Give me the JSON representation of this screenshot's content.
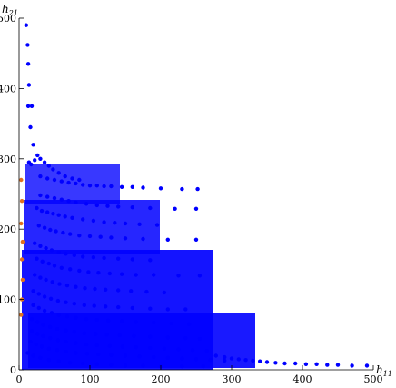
{
  "chart_data": {
    "type": "scatter",
    "title": "",
    "xlabel": "h11",
    "ylabel": "h21",
    "xlim": [
      0,
      500
    ],
    "ylim": [
      0,
      500
    ],
    "xticks": [
      0,
      100,
      200,
      300,
      400,
      500
    ],
    "yticks": [
      0,
      100,
      200,
      300,
      400,
      500
    ],
    "grid": false,
    "legend": "none",
    "colors": {
      "main": "#0000ff",
      "highlight": "#e07020"
    },
    "series": [
      {
        "color": "#0000ff",
        "points": [
          [
            10,
            490
          ],
          [
            12,
            462
          ],
          [
            13,
            435
          ],
          [
            14,
            405
          ],
          [
            13,
            375
          ],
          [
            18,
            375
          ],
          [
            16,
            345
          ],
          [
            20,
            320
          ],
          [
            14,
            295
          ],
          [
            17,
            292
          ],
          [
            22,
            298
          ],
          [
            26,
            305
          ],
          [
            30,
            300
          ],
          [
            36,
            295
          ],
          [
            42,
            290
          ],
          [
            48,
            285
          ],
          [
            56,
            280
          ],
          [
            65,
            275
          ],
          [
            75,
            272
          ],
          [
            85,
            270
          ],
          [
            30,
            275
          ],
          [
            40,
            272
          ],
          [
            50,
            270
          ],
          [
            60,
            268
          ],
          [
            70,
            266
          ],
          [
            80,
            265
          ],
          [
            90,
            263
          ],
          [
            100,
            262
          ],
          [
            110,
            262
          ],
          [
            120,
            261
          ],
          [
            130,
            261
          ],
          [
            145,
            260
          ],
          [
            160,
            260
          ],
          [
            175,
            259
          ],
          [
            200,
            258
          ],
          [
            230,
            257
          ],
          [
            252,
            257
          ],
          [
            30,
            248
          ],
          [
            40,
            246
          ],
          [
            50,
            244
          ],
          [
            60,
            242
          ],
          [
            70,
            240
          ],
          [
            80,
            238
          ],
          [
            95,
            236
          ],
          [
            110,
            234
          ],
          [
            125,
            233
          ],
          [
            140,
            232
          ],
          [
            160,
            231
          ],
          [
            185,
            230
          ],
          [
            220,
            229
          ],
          [
            250,
            229
          ],
          [
            25,
            230
          ],
          [
            32,
            226
          ],
          [
            40,
            224
          ],
          [
            48,
            222
          ],
          [
            56,
            220
          ],
          [
            65,
            218
          ],
          [
            75,
            216
          ],
          [
            90,
            214
          ],
          [
            105,
            212
          ],
          [
            120,
            210
          ],
          [
            135,
            209
          ],
          [
            150,
            208
          ],
          [
            170,
            207
          ],
          [
            195,
            206
          ],
          [
            28,
            205
          ],
          [
            36,
            202
          ],
          [
            44,
            199
          ],
          [
            52,
            197
          ],
          [
            62,
            195
          ],
          [
            72,
            193
          ],
          [
            85,
            191
          ],
          [
            100,
            190
          ],
          [
            115,
            189
          ],
          [
            130,
            188
          ],
          [
            150,
            187
          ],
          [
            175,
            186
          ],
          [
            210,
            185
          ],
          [
            250,
            185
          ],
          [
            22,
            180
          ],
          [
            30,
            176
          ],
          [
            38,
            173
          ],
          [
            46,
            170
          ],
          [
            56,
            167
          ],
          [
            66,
            165
          ],
          [
            78,
            163
          ],
          [
            90,
            161
          ],
          [
            105,
            160
          ],
          [
            120,
            159
          ],
          [
            140,
            158
          ],
          [
            160,
            157
          ],
          [
            185,
            156
          ],
          [
            25,
            158
          ],
          [
            33,
            154
          ],
          [
            42,
            151
          ],
          [
            50,
            148
          ],
          [
            60,
            145
          ],
          [
            72,
            143
          ],
          [
            85,
            141
          ],
          [
            98,
            139
          ],
          [
            112,
            138
          ],
          [
            128,
            137
          ],
          [
            145,
            136
          ],
          [
            165,
            135
          ],
          [
            190,
            135
          ],
          [
            225,
            134
          ],
          [
            255,
            134
          ],
          [
            22,
            135
          ],
          [
            30,
            131
          ],
          [
            38,
            128
          ],
          [
            47,
            125
          ],
          [
            57,
            122
          ],
          [
            68,
            120
          ],
          [
            80,
            118
          ],
          [
            93,
            116
          ],
          [
            107,
            115
          ],
          [
            122,
            114
          ],
          [
            140,
            113
          ],
          [
            158,
            112
          ],
          [
            180,
            111
          ],
          [
            205,
            110
          ],
          [
            20,
            112
          ],
          [
            28,
            108
          ],
          [
            36,
            104
          ],
          [
            45,
            101
          ],
          [
            55,
            98
          ],
          [
            66,
            96
          ],
          [
            78,
            94
          ],
          [
            92,
            92
          ],
          [
            106,
            91
          ],
          [
            122,
            90
          ],
          [
            140,
            89
          ],
          [
            160,
            88
          ],
          [
            185,
            87
          ],
          [
            210,
            86
          ],
          [
            235,
            86
          ],
          [
            20,
            92
          ],
          [
            28,
            88
          ],
          [
            36,
            84
          ],
          [
            46,
            81
          ],
          [
            56,
            78
          ],
          [
            68,
            76
          ],
          [
            80,
            74
          ],
          [
            95,
            72
          ],
          [
            110,
            71
          ],
          [
            126,
            70
          ],
          [
            145,
            69
          ],
          [
            165,
            68
          ],
          [
            190,
            67
          ],
          [
            215,
            66
          ],
          [
            240,
            65
          ],
          [
            18,
            72
          ],
          [
            26,
            68
          ],
          [
            34,
            64
          ],
          [
            44,
            61
          ],
          [
            54,
            58
          ],
          [
            66,
            56
          ],
          [
            78,
            54
          ],
          [
            92,
            52
          ],
          [
            108,
            51
          ],
          [
            124,
            50
          ],
          [
            142,
            49
          ],
          [
            162,
            48
          ],
          [
            185,
            47
          ],
          [
            210,
            46
          ],
          [
            235,
            45
          ],
          [
            255,
            44
          ],
          [
            18,
            55
          ],
          [
            26,
            51
          ],
          [
            34,
            48
          ],
          [
            44,
            45
          ],
          [
            55,
            42
          ],
          [
            66,
            40
          ],
          [
            80,
            38
          ],
          [
            95,
            36
          ],
          [
            110,
            35
          ],
          [
            128,
            34
          ],
          [
            146,
            33
          ],
          [
            165,
            32
          ],
          [
            185,
            31
          ],
          [
            205,
            30
          ],
          [
            225,
            29
          ],
          [
            245,
            28
          ],
          [
            265,
            27
          ],
          [
            16,
            40
          ],
          [
            24,
            36
          ],
          [
            32,
            33
          ],
          [
            42,
            30
          ],
          [
            54,
            28
          ],
          [
            66,
            26
          ],
          [
            80,
            24
          ],
          [
            96,
            23
          ],
          [
            112,
            22
          ],
          [
            130,
            21
          ],
          [
            150,
            20
          ],
          [
            170,
            19
          ],
          [
            190,
            18
          ],
          [
            210,
            17
          ],
          [
            230,
            16
          ],
          [
            250,
            15
          ],
          [
            270,
            14
          ],
          [
            290,
            13
          ],
          [
            12,
            24
          ],
          [
            20,
            20
          ],
          [
            30,
            17
          ],
          [
            42,
            14
          ],
          [
            56,
            12
          ],
          [
            72,
            10
          ],
          [
            90,
            9
          ],
          [
            110,
            8
          ],
          [
            130,
            7
          ],
          [
            150,
            6
          ],
          [
            175,
            6
          ],
          [
            200,
            5
          ],
          [
            230,
            5
          ],
          [
            260,
            5
          ],
          [
            278,
            20
          ],
          [
            290,
            18
          ],
          [
            300,
            16
          ],
          [
            310,
            15
          ],
          [
            320,
            14
          ],
          [
            330,
            13
          ],
          [
            340,
            12
          ],
          [
            350,
            11
          ],
          [
            362,
            10
          ],
          [
            375,
            9
          ],
          [
            390,
            9
          ],
          [
            405,
            8
          ],
          [
            420,
            8
          ],
          [
            435,
            7
          ],
          [
            450,
            7
          ],
          [
            470,
            6
          ],
          [
            491,
            6
          ]
        ]
      },
      {
        "color": "#e07020",
        "points": [
          [
            3,
            270
          ],
          [
            4,
            240
          ],
          [
            3,
            208
          ],
          [
            5,
            182
          ],
          [
            4,
            157
          ],
          [
            5,
            128
          ],
          [
            4,
            100
          ],
          [
            3,
            78
          ]
        ]
      }
    ]
  }
}
